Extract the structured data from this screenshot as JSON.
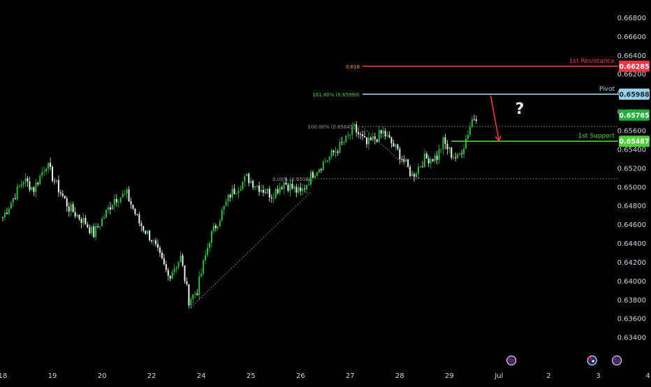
{
  "chart_data": {
    "type": "candlestick",
    "title": "",
    "xlabel": "",
    "ylabel": "",
    "ylim": [
      0.6326,
      0.669
    ],
    "y_ticks": [
      "0.66800",
      "0.66600",
      "0.66400",
      "0.66200",
      "0.66000",
      "0.65800",
      "0.65600",
      "0.65400",
      "0.65200",
      "0.65000",
      "0.64800",
      "0.64600",
      "0.64400",
      "0.64200",
      "0.64000",
      "0.63800",
      "0.63600",
      "0.63400"
    ],
    "y_tick_values": [
      0.668,
      0.666,
      0.664,
      0.662,
      0.66,
      0.658,
      0.656,
      0.654,
      0.652,
      0.65,
      0.648,
      0.646,
      0.644,
      0.642,
      0.64,
      0.638,
      0.636,
      0.634
    ],
    "x_ticks": [
      {
        "label": "18",
        "bar": 0
      },
      {
        "label": "19",
        "bar": 24
      },
      {
        "label": "20",
        "bar": 48
      },
      {
        "label": "22",
        "bar": 72
      },
      {
        "label": "24",
        "bar": 96
      },
      {
        "label": "25",
        "bar": 120
      },
      {
        "label": "26",
        "bar": 144
      },
      {
        "label": "27",
        "bar": 168
      },
      {
        "label": "28",
        "bar": 192
      },
      {
        "label": "29",
        "bar": 216
      },
      {
        "label": "Jul",
        "bar": 240
      },
      {
        "label": "2",
        "bar": 264
      },
      {
        "label": "3",
        "bar": 288
      },
      {
        "label": "4",
        "bar": 312
      }
    ],
    "anchors": [
      {
        "bar": 0,
        "price": 0.6468
      },
      {
        "bar": 10,
        "price": 0.6508
      },
      {
        "bar": 15,
        "price": 0.6498
      },
      {
        "bar": 21,
        "price": 0.6525
      },
      {
        "bar": 26,
        "price": 0.6502
      },
      {
        "bar": 32,
        "price": 0.6478
      },
      {
        "bar": 40,
        "price": 0.6462
      },
      {
        "bar": 44,
        "price": 0.645
      },
      {
        "bar": 54,
        "price": 0.6488
      },
      {
        "bar": 60,
        "price": 0.6492
      },
      {
        "bar": 66,
        "price": 0.6462
      },
      {
        "bar": 72,
        "price": 0.6445
      },
      {
        "bar": 80,
        "price": 0.6405
      },
      {
        "bar": 86,
        "price": 0.6425
      },
      {
        "bar": 90,
        "price": 0.638
      },
      {
        "bar": 94,
        "price": 0.639
      },
      {
        "bar": 100,
        "price": 0.6445
      },
      {
        "bar": 110,
        "price": 0.6492
      },
      {
        "bar": 118,
        "price": 0.651
      },
      {
        "bar": 124,
        "price": 0.65
      },
      {
        "bar": 130,
        "price": 0.6492
      },
      {
        "bar": 136,
        "price": 0.6505
      },
      {
        "bar": 144,
        "price": 0.6493
      },
      {
        "bar": 150,
        "price": 0.6515
      },
      {
        "bar": 158,
        "price": 0.6532
      },
      {
        "bar": 166,
        "price": 0.655
      },
      {
        "bar": 170,
        "price": 0.6562
      },
      {
        "bar": 176,
        "price": 0.6545
      },
      {
        "bar": 184,
        "price": 0.6558
      },
      {
        "bar": 192,
        "price": 0.6535
      },
      {
        "bar": 198,
        "price": 0.6512
      },
      {
        "bar": 204,
        "price": 0.653
      },
      {
        "bar": 210,
        "price": 0.6532
      },
      {
        "bar": 213,
        "price": 0.6548
      },
      {
        "bar": 217,
        "price": 0.6535
      },
      {
        "bar": 220,
        "price": 0.653
      },
      {
        "bar": 223,
        "price": 0.6545
      },
      {
        "bar": 227,
        "price": 0.6572
      },
      {
        "bar": 229,
        "price": 0.6576
      }
    ],
    "levels": [
      {
        "name": "1st Resistance",
        "price": 0.66285,
        "tag": "0.66285",
        "color": "#f23645",
        "fib_label": "0.618",
        "fib_color": "#f5a623",
        "bar_start": 174
      },
      {
        "name": "Pivot",
        "price": 0.65988,
        "tag": "0.65988",
        "color": "#9ad1e8",
        "fib_label": "161.80% (0.65990)",
        "fib_color": "#4cd137",
        "bar_start": 174
      },
      {
        "name": "1st Support",
        "price": 0.65487,
        "tag": "0.65487",
        "color": "#4cd137",
        "fib_label": "",
        "bar_start": 217
      }
    ],
    "current_price": {
      "price": 0.65765,
      "tag": "0.65765",
      "color": "#1fae3b"
    },
    "fib_dotted": [
      {
        "price": 0.65645,
        "label": "100.00% (0.65645)",
        "bar_start": 171
      },
      {
        "price": 0.65088,
        "label": "0.00% (0.65088)",
        "bar_start": 151
      }
    ],
    "trend_lines": [
      {
        "from": {
          "bar": 91,
          "price": 0.6372
        },
        "to": {
          "bar": 149,
          "price": 0.6495
        }
      },
      {
        "from": {
          "bar": 174,
          "price": 0.6564
        },
        "to": {
          "bar": 202,
          "price": 0.6508
        }
      }
    ],
    "arrow": {
      "from": {
        "bar": 236,
        "price": 0.6597
      },
      "to": {
        "bar": 240,
        "price": 0.6549
      },
      "color": "#f23645"
    },
    "question_mark": {
      "text": "?",
      "bar": 250,
      "price": 0.6578
    },
    "event_markers": [
      {
        "name": "us-flag",
        "bar": 246
      },
      {
        "name": "au-flag",
        "bar": 285
      },
      {
        "name": "us-flag",
        "bar": 297
      }
    ],
    "colors": {
      "up": "#22c23a",
      "down": "#f0f0f0",
      "background": "#000000",
      "axis_text": "#d1d4dc"
    }
  }
}
